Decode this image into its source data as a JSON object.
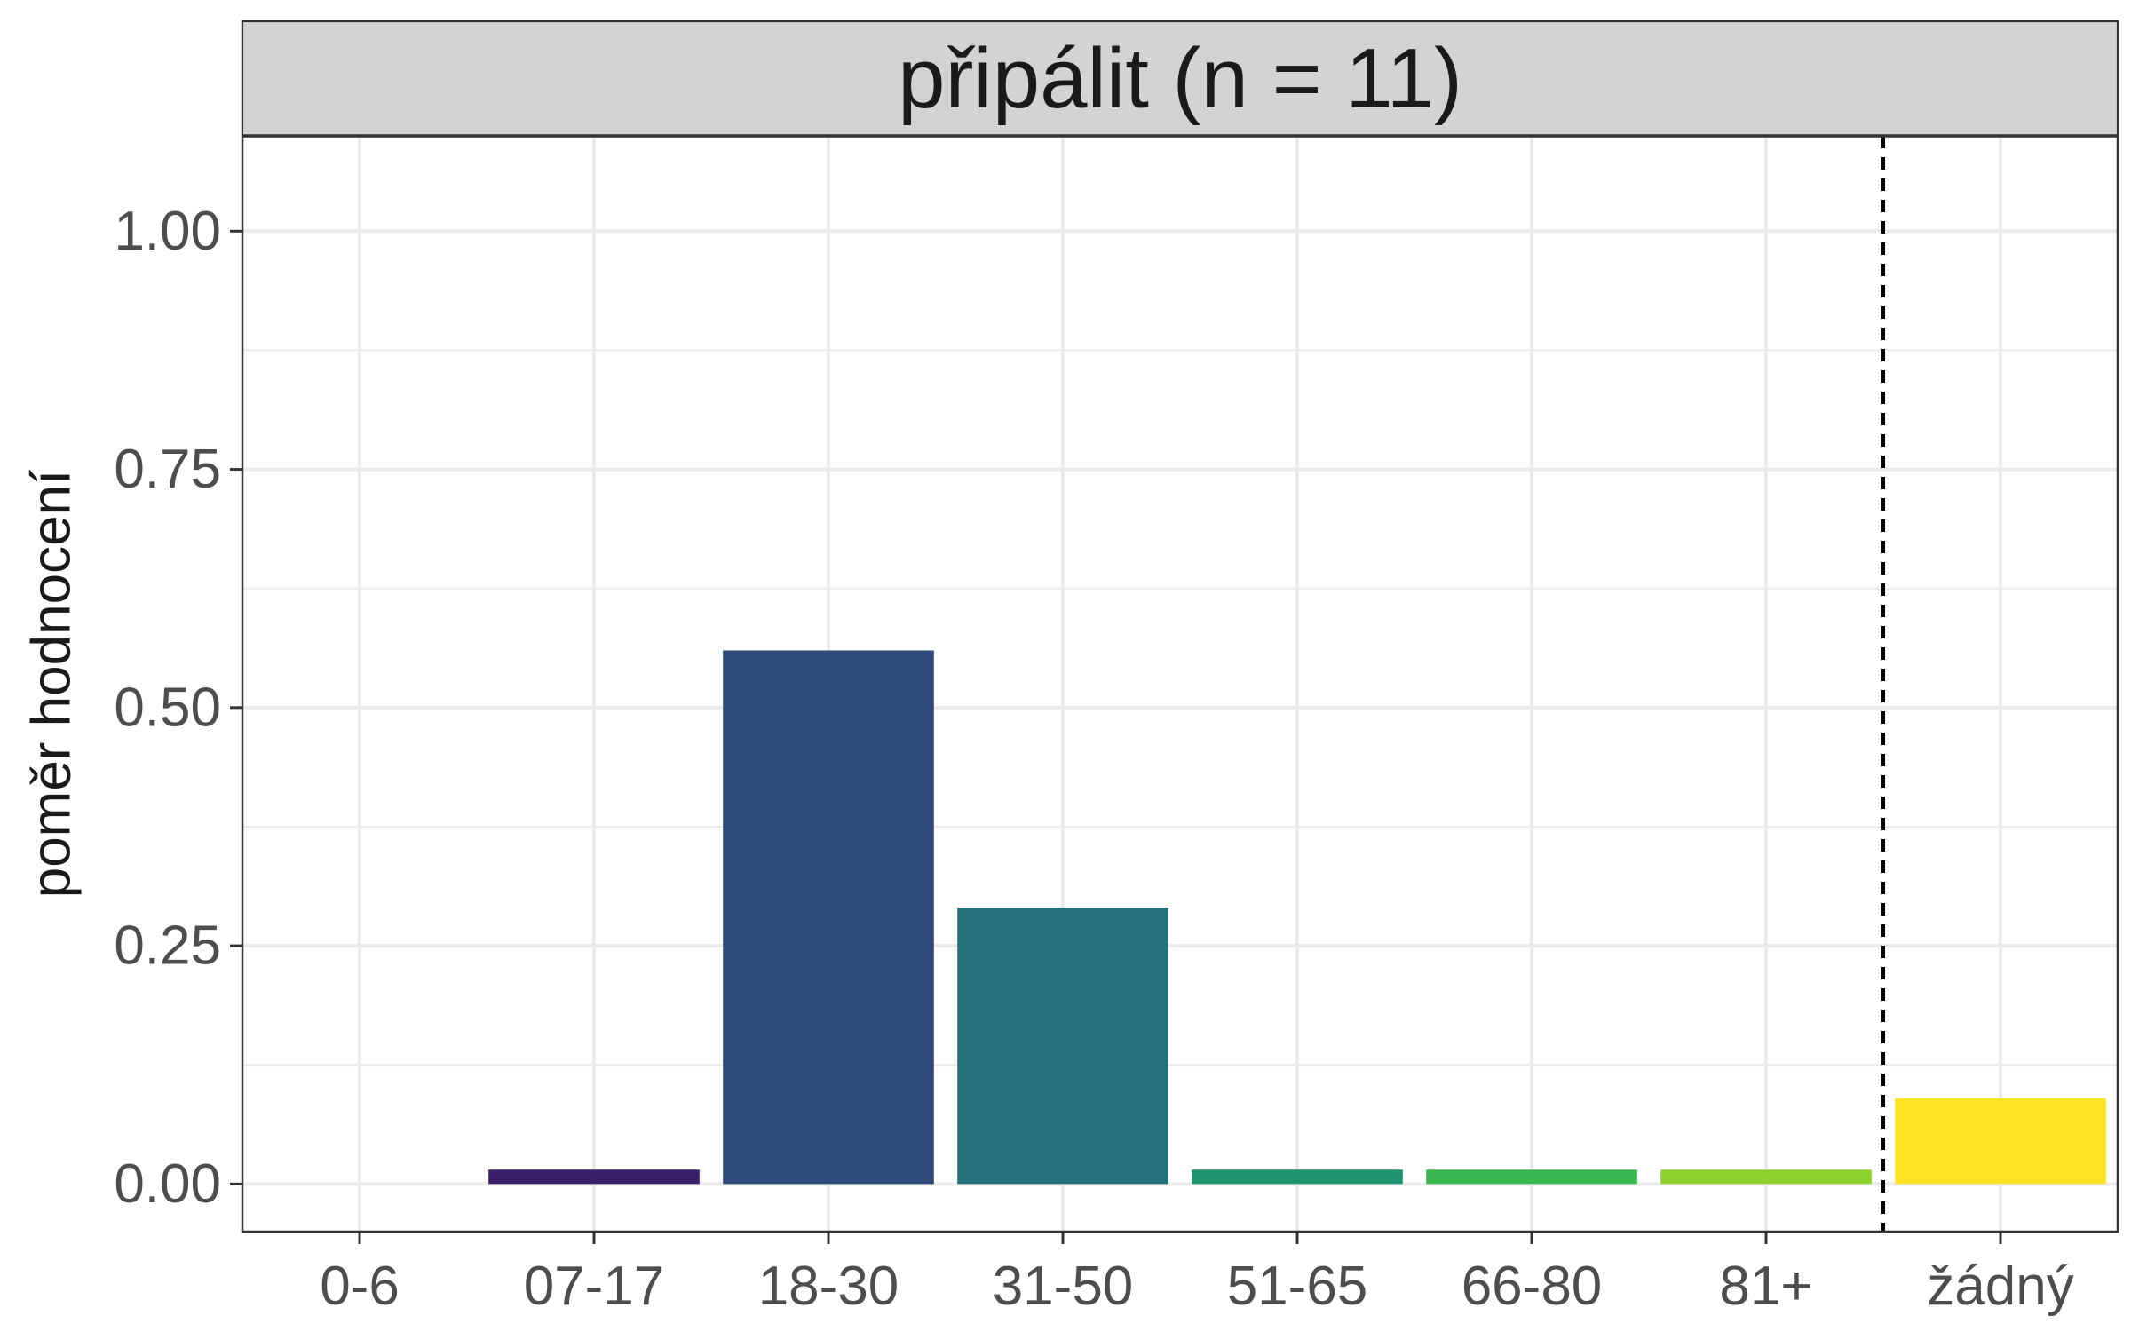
{
  "chart_data": {
    "type": "bar",
    "title": "připálit (n = 11)",
    "ylabel": "poměr hodnocení",
    "xlabel": "",
    "categories": [
      "0-6",
      "07-17",
      "18-30",
      "31-50",
      "51-65",
      "66-80",
      "81+",
      "žádný"
    ],
    "values": [
      0.0,
      0.015,
      0.56,
      0.29,
      0.015,
      0.015,
      0.015,
      0.09
    ],
    "colors": [
      "#440154",
      "#3A1F6B",
      "#2D4A78",
      "#21707C",
      "#1F9270",
      "#3AB651",
      "#8CD22E",
      "#FDE324"
    ],
    "ylim": [
      -0.05,
      1.1
    ],
    "yticks": [
      "0.00",
      "0.25",
      "0.50",
      "0.75",
      "1.00"
    ],
    "ytick_values": [
      0,
      0.25,
      0.5,
      0.75,
      1.0
    ],
    "reference_line": {
      "between": [
        "81+",
        "žádný"
      ],
      "style": "dashed"
    },
    "grid": true,
    "legend": "none",
    "panel_border_color": "#333333",
    "strip_fill": "#d3d3d3",
    "grid_color": "#ebebeb"
  }
}
